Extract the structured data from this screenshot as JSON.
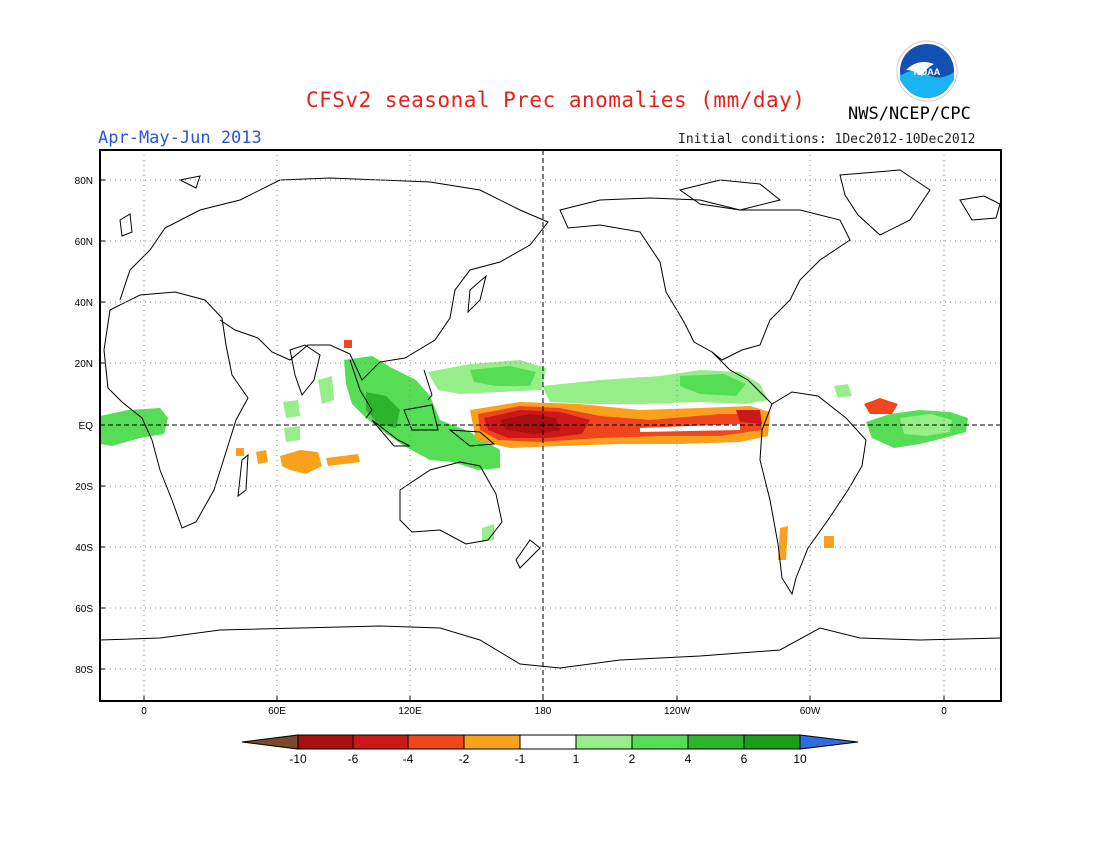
{
  "header": {
    "title": "CFSv2 seasonal Prec anomalies (mm/day)",
    "season": "Apr-May-Jun 2013",
    "initial_conditions": "Initial conditions: 1Dec2012-10Dec2012",
    "organization": "NWS/NCEP/CPC",
    "logo_text": "NOAA"
  },
  "colors": {
    "title": "#e8201c",
    "season": "#2a55d8",
    "land_outline": "#000000",
    "bin_le_-10": "#7a4a2a",
    "bin_-10_-6": "#a80f0f",
    "bin_-6_-4": "#cc1818",
    "bin_-4_-2": "#f0461e",
    "bin_-2_-1": "#f9a11d",
    "bin_-1_1": "#ffffff",
    "bin_1_2": "#96ee88",
    "bin_2_4": "#55dd55",
    "bin_4_6": "#2cb52c",
    "bin_6_10": "#1a9e1a",
    "bin_ge_10": "#2e6de0"
  },
  "map": {
    "lon_ticks": [
      "0",
      "60E",
      "120E",
      "180",
      "120W",
      "60W",
      "0"
    ],
    "lat_ticks": [
      "80N",
      "60N",
      "40N",
      "20N",
      "EQ",
      "20S",
      "40S",
      "60S",
      "80S"
    ]
  },
  "colorbar": {
    "tick_labels": [
      "-10",
      "-6",
      "-4",
      "-2",
      "-1",
      "1",
      "2",
      "4",
      "6",
      "10"
    ]
  }
}
